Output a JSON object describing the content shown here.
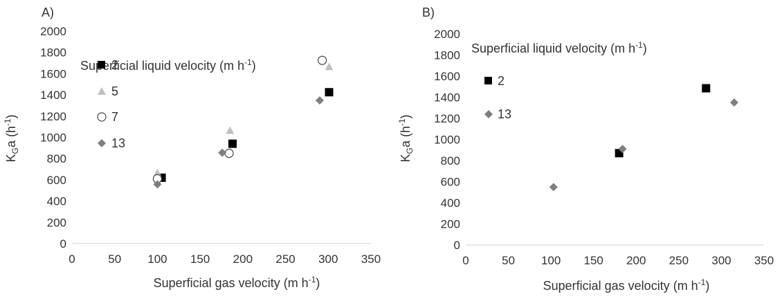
{
  "chart_data": [
    {
      "panel_label": "A)",
      "type": "scatter",
      "xlabel": {
        "base": "Superficial gas velocity (m h",
        "sup": "-1",
        "tail": ")"
      },
      "ylabel": {
        "main": "K",
        "sub": "G",
        "mid": "a (h",
        "sup": "-1",
        "tail": ")"
      },
      "xlim": [
        0,
        350
      ],
      "ylim": [
        0,
        2000
      ],
      "xticks": [
        "0",
        "50",
        "100",
        "150",
        "200",
        "250",
        "300",
        "350"
      ],
      "yticks": [
        "0",
        "200",
        "400",
        "600",
        "800",
        "1000",
        "1200",
        "1400",
        "1600",
        "1800",
        "2000"
      ],
      "grid": false,
      "legend": {
        "title": {
          "base": "Superficial liquid velocity (m h",
          "sup": "-1",
          "tail": ")"
        },
        "placement": "top-left"
      },
      "series": [
        {
          "name": "2",
          "marker": "square",
          "color": "#000000",
          "points": [
            [
              105,
              620
            ],
            [
              188,
              940
            ],
            [
              301,
              1425
            ]
          ]
        },
        {
          "name": "5",
          "marker": "triangle",
          "color": "#bfbfbf",
          "points": [
            [
              100,
              665
            ],
            [
              185,
              1065
            ],
            [
              301,
              1665
            ]
          ]
        },
        {
          "name": "7",
          "marker": "circle-open",
          "color": "#444444",
          "points": [
            [
              100,
              610
            ],
            [
              184,
              850
            ],
            [
              293,
              1725
            ]
          ]
        },
        {
          "name": "13",
          "marker": "diamond",
          "color": "#7f7f7f",
          "points": [
            [
              100,
              558
            ],
            [
              176,
              855
            ],
            [
              290,
              1348
            ]
          ]
        }
      ]
    },
    {
      "panel_label": "B)",
      "type": "scatter",
      "xlabel": {
        "base": "Superficial gas velocity (m h",
        "sup": "-1",
        "tail": ")"
      },
      "ylabel": {
        "main": "K",
        "sub": "G",
        "mid": "a (h",
        "sup": "-1",
        "tail": ")"
      },
      "xlim": [
        0,
        350
      ],
      "ylim": [
        0,
        2000
      ],
      "xticks": [
        "0",
        "50",
        "100",
        "150",
        "200",
        "250",
        "300",
        "350"
      ],
      "yticks": [
        "0",
        "200",
        "400",
        "600",
        "800",
        "1000",
        "1200",
        "1400",
        "1600",
        "1800",
        "2000"
      ],
      "grid": false,
      "legend": {
        "title": {
          "base": "Superficial liquid velocity (m h",
          "sup": "-1",
          "tail": ")"
        },
        "placement": "top-left"
      },
      "series": [
        {
          "name": "2",
          "marker": "square",
          "color": "#000000",
          "points": [
            [
              180,
              870
            ],
            [
              282,
              1485
            ]
          ]
        },
        {
          "name": "13",
          "marker": "diamond",
          "color": "#7f7f7f",
          "points": [
            [
              103,
              548
            ],
            [
              184,
              910
            ],
            [
              315,
              1350
            ]
          ]
        }
      ]
    }
  ]
}
